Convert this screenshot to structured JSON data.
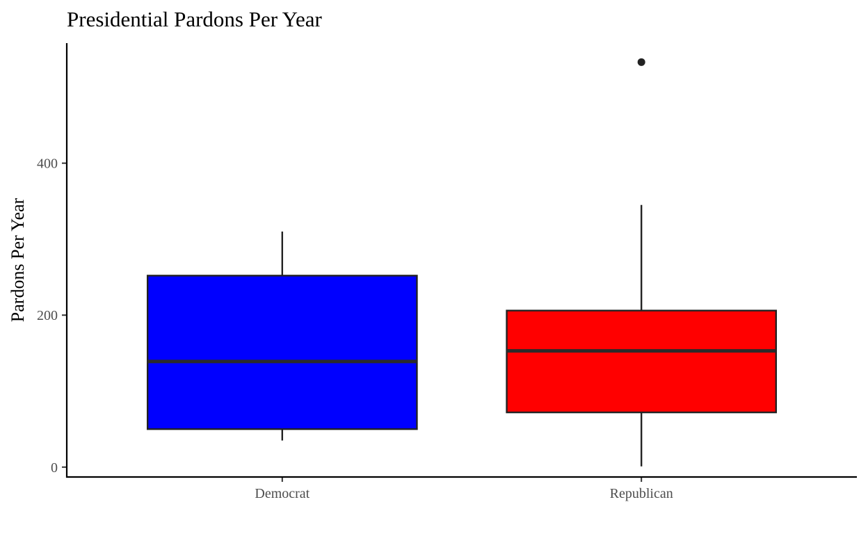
{
  "chart_data": {
    "type": "box",
    "title": "Presidential Pardons Per Year",
    "xlabel": "",
    "ylabel": "Pardons Per Year",
    "ylim": [
      -13,
      558
    ],
    "yticks": [
      0,
      200,
      400
    ],
    "grid": false,
    "legend": "none",
    "categories": [
      "Democrat",
      "Republican"
    ],
    "boxes": [
      {
        "category": "Democrat",
        "min": 35,
        "q1": 50,
        "median": 139,
        "q3": 252,
        "max": 310,
        "outliers": [],
        "color": "#0000ff"
      },
      {
        "category": "Republican",
        "min": 1,
        "q1": 72,
        "median": 153,
        "q3": 206,
        "max": 345,
        "outliers": [
          533
        ],
        "color": "#ff0000"
      }
    ]
  }
}
